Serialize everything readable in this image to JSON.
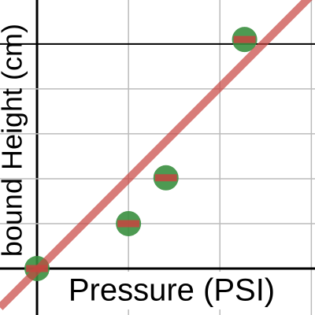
{
  "chart_data": {
    "type": "scatter",
    "x_label": "Pressure (PSI)",
    "y_label": "bound Height (cm)",
    "xlim": [
      -0.405,
      3.04
    ],
    "ylim": [
      -1.035,
      5.98
    ],
    "xticks": [
      0,
      1,
      2,
      3
    ],
    "yticks": [
      0,
      1,
      2,
      3,
      4,
      5
    ],
    "grid": true,
    "bold_ytick": 5,
    "series": [
      {
        "color": "#3a8f3f",
        "x": [
          0,
          1,
          1.41,
          2.27
        ],
        "values": [
          0,
          1,
          2.02,
          5.1
        ],
        "xerr": [
          0.12,
          0.12,
          0.12,
          0.12
        ],
        "err_color": "#c74440"
      }
    ],
    "trendline": {
      "slope": 2.04,
      "intercept": -0.04,
      "color": "#c74440"
    }
  }
}
